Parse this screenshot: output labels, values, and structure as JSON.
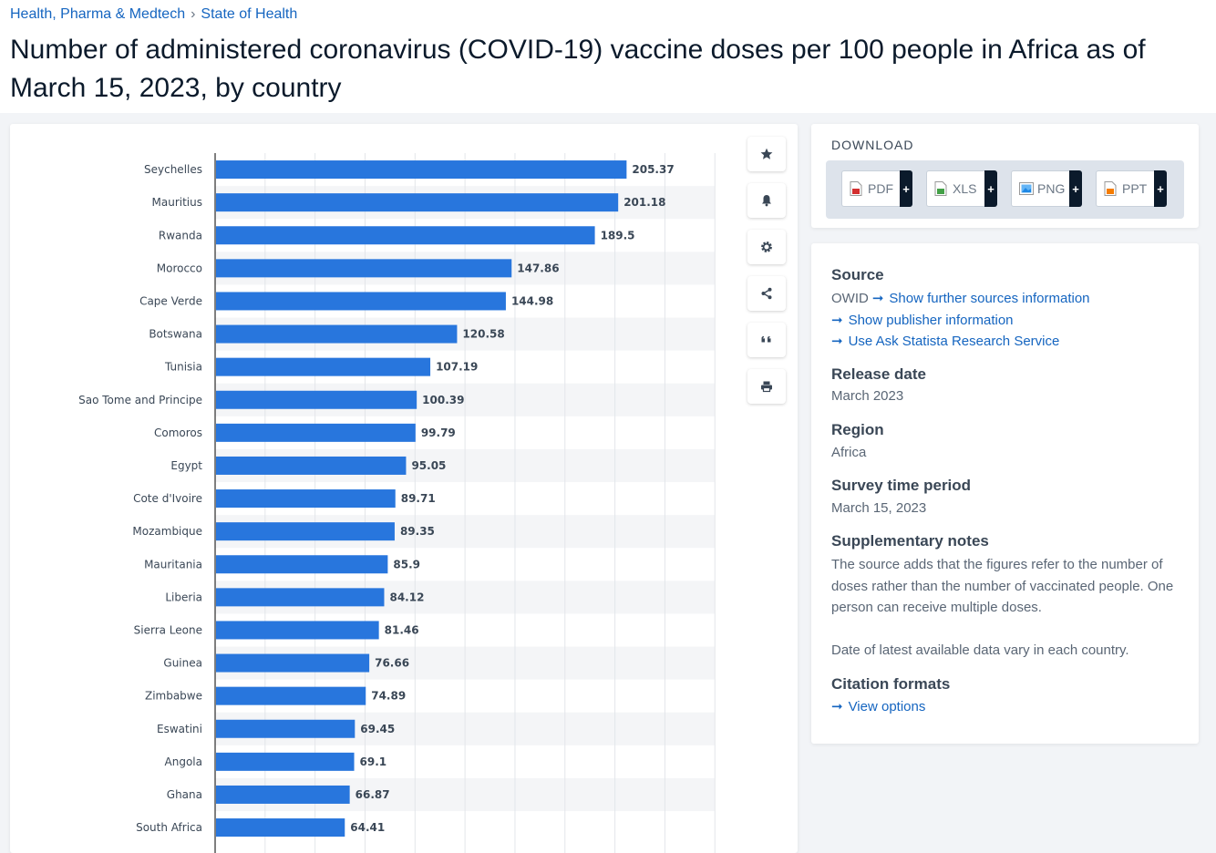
{
  "breadcrumb": {
    "item1": "Health, Pharma & Medtech",
    "separator": "›",
    "item2": "State of Health"
  },
  "title": "Number of administered coronavirus (COVID-19) vaccine doses per 100 people in Africa as of March 15, 2023, by country",
  "toolbar": {
    "icons": [
      "star-icon",
      "bell-icon",
      "gear-icon",
      "share-icon",
      "quote-icon",
      "print-icon"
    ]
  },
  "download": {
    "label": "DOWNLOAD",
    "formats": [
      {
        "name": "PDF",
        "plus": "+",
        "color": "#d32f2f"
      },
      {
        "name": "XLS",
        "plus": "+",
        "color": "#43a047"
      },
      {
        "name": "PNG",
        "plus": "+",
        "color": "#1e88e5"
      },
      {
        "name": "PPT",
        "plus": "+",
        "color": "#f57c00"
      }
    ]
  },
  "info": {
    "source_heading": "Source",
    "source_name": "OWID",
    "link_further_sources": "Show further sources information",
    "link_publisher": "Show publisher information",
    "link_research": "Use Ask Statista Research Service",
    "arrow": "➞",
    "release_heading": "Release date",
    "release_value": "March 2023",
    "region_heading": "Region",
    "region_value": "Africa",
    "survey_heading": "Survey time period",
    "survey_value": "March 15, 2023",
    "notes_heading": "Supplementary notes",
    "notes_text": "The source adds that the figures refer to the number of doses rather than the number of vaccinated people. One person can receive multiple doses.",
    "notes_text2": "Date of latest available data vary in each country.",
    "citation_heading": "Citation formats",
    "citation_link": "View options"
  },
  "chart_data": {
    "type": "bar",
    "orientation": "horizontal",
    "categories": [
      "Seychelles",
      "Mauritius",
      "Rwanda",
      "Morocco",
      "Cape Verde",
      "Botswana",
      "Tunisia",
      "Sao Tome and Principe",
      "Comoros",
      "Egypt",
      "Cote d'Ivoire",
      "Mozambique",
      "Mauritania",
      "Liberia",
      "Sierra Leone",
      "Guinea",
      "Zimbabwe",
      "Eswatini",
      "Angola",
      "Ghana",
      "South Africa"
    ],
    "values": [
      205.37,
      201.18,
      189.5,
      147.86,
      144.98,
      120.58,
      107.19,
      100.39,
      99.79,
      95.05,
      89.71,
      89.35,
      85.9,
      84.12,
      81.46,
      76.66,
      74.89,
      69.45,
      69.1,
      66.87,
      64.41
    ],
    "value_labels": [
      "205.37",
      "201.18",
      "189.5",
      "147.86",
      "144.98",
      "120.58",
      "107.19",
      "100.39",
      "99.79",
      "95.05",
      "89.71",
      "89.35",
      "85.9",
      "84.12",
      "81.46",
      "76.66",
      "74.89",
      "69.45",
      "69.1",
      "66.87",
      "64.41"
    ],
    "xlim": [
      0,
      250
    ],
    "bar_color": "#2876dd",
    "grid": true
  }
}
